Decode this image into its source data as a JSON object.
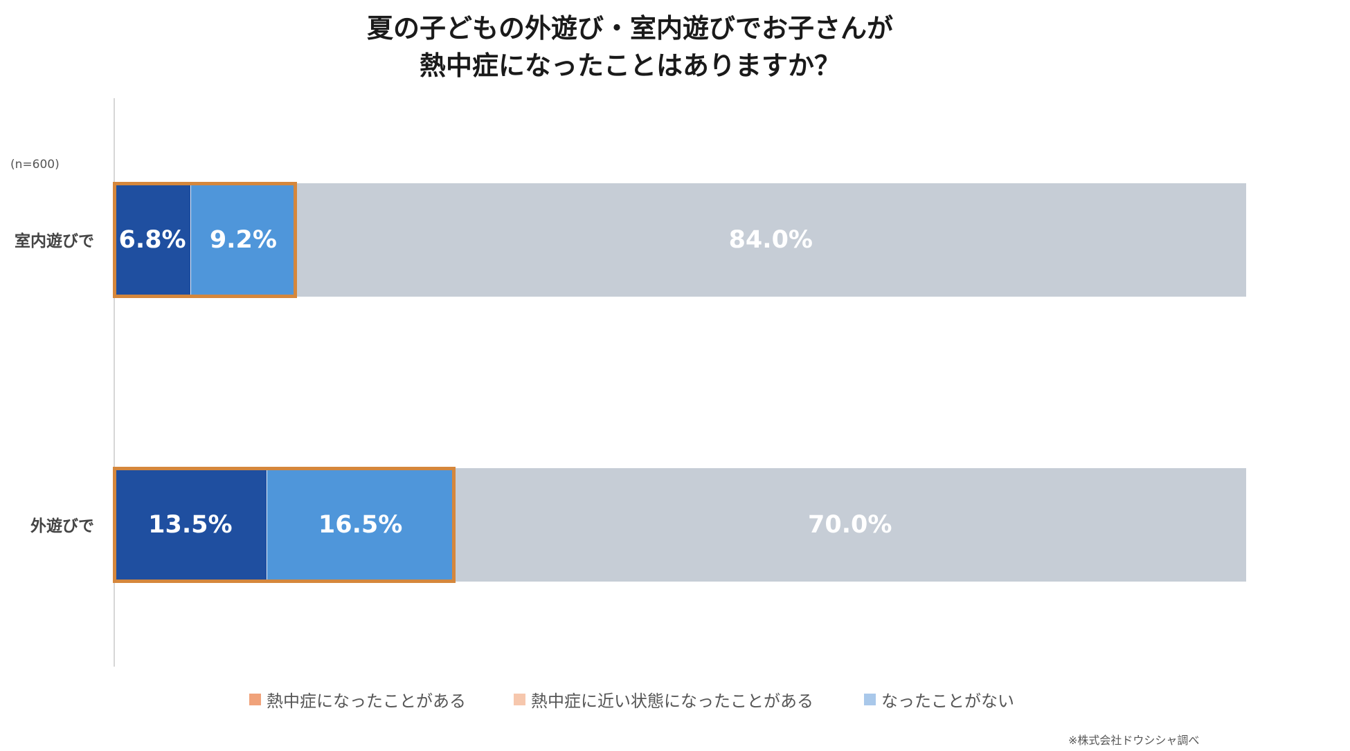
{
  "title_lines": [
    "夏の子どもの外遊び・室内遊びでお子さんが",
    "熱中症になったことはありますか？"
  ],
  "sample_note": "(n=600)",
  "source": "※株式会社ドウシシャ調べ",
  "legend": [
    {
      "label": "熱中症になったことがある",
      "color": "#f0a27a"
    },
    {
      "label": "熱中症に近い状態になったことがある",
      "color": "#f6c7ad"
    },
    {
      "label": "なったことがない",
      "color": "#a9c8ea"
    }
  ],
  "chart_data": {
    "type": "bar",
    "orientation": "horizontal",
    "stacked": true,
    "percent_total": 100,
    "categories": [
      "室内遊びで",
      "外遊びで"
    ],
    "series": [
      {
        "name": "熱中症になったことがある",
        "values": [
          6.8,
          13.5
        ],
        "labels": [
          "6.8%",
          "13.5%"
        ],
        "bar_color": "#1f4fa0"
      },
      {
        "name": "熱中症に近い状態になったことがある",
        "values": [
          9.2,
          16.5
        ],
        "labels": [
          "9.2%",
          "16.5%"
        ],
        "bar_color": "#4f96da"
      },
      {
        "name": "なったことがない",
        "values": [
          84.0,
          70.0
        ],
        "labels": [
          "84.0%",
          "70.0%"
        ],
        "bar_color": "#c6cdd6"
      }
    ],
    "highlight_color": "#d5873c",
    "legend_position": "bottom",
    "grid": false
  }
}
